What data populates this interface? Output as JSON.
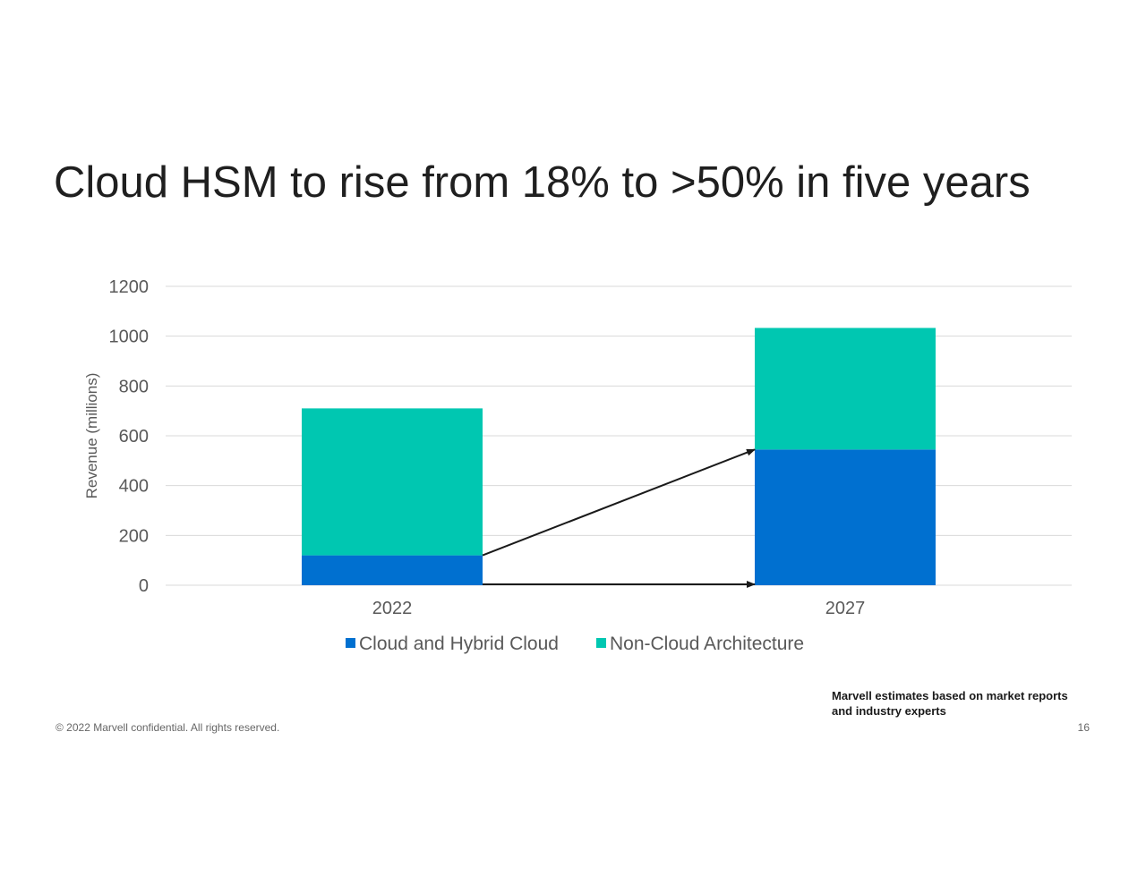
{
  "slide": {
    "title": "Cloud HSM to rise from 18% to >50% in five years",
    "source_line1": "Marvell estimates based on market reports",
    "source_line2": "and industry experts",
    "copyright": "© 2022 Marvell confidential. All rights reserved.",
    "page_number": "16"
  },
  "chart_data": {
    "type": "bar",
    "stacked": true,
    "categories": [
      "2022",
      "2027"
    ],
    "series": [
      {
        "name": "Cloud and Hybrid Cloud",
        "values": [
          120,
          545
        ],
        "color": "#0070D0"
      },
      {
        "name": "Non-Cloud Architecture",
        "values": [
          590,
          488
        ],
        "color": "#00C7B1"
      }
    ],
    "ylabel": "Revenue (millions)",
    "xlabel": "",
    "ylim": [
      0,
      1200
    ],
    "yticks": [
      0,
      200,
      400,
      600,
      800,
      1000,
      1200
    ],
    "grid": true,
    "legend_position": "bottom",
    "annotations": [
      {
        "type": "arrow",
        "from": {
          "category": "2022",
          "value": 120
        },
        "to": {
          "category": "2027",
          "value": 545
        }
      },
      {
        "type": "arrow",
        "from": {
          "category": "2022",
          "value": 0
        },
        "to": {
          "category": "2027",
          "value": 0
        }
      }
    ]
  }
}
